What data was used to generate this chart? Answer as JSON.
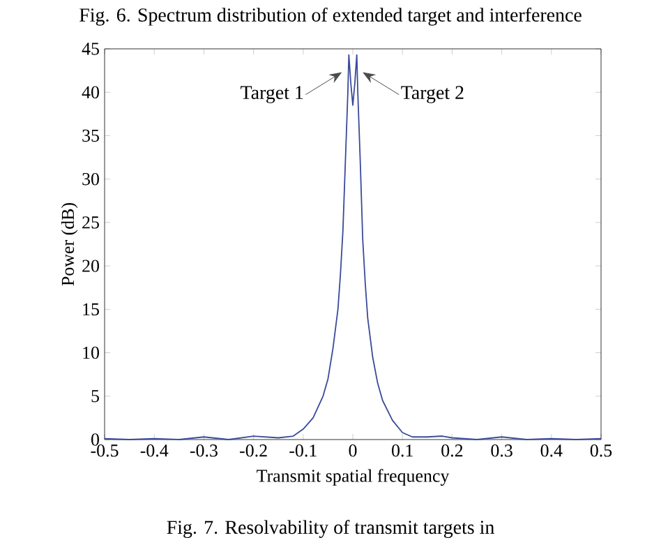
{
  "chart_data": {
    "type": "line",
    "title": "Fig. 6.  Spectrum distribution of extended target and interference",
    "xlabel": "Transmit spatial frequency",
    "ylabel": "Power (dB)",
    "annotations": [
      {
        "text": "Target 1",
        "x": -0.022,
        "y": 42.3
      },
      {
        "text": "Target 2",
        "x": 0.02,
        "y": 42.3
      },
      "Fig. 7.  Resolvability of transmit targets in"
    ],
    "x": [
      -0.5,
      -0.45,
      -0.4,
      -0.35,
      -0.3,
      -0.25,
      -0.2,
      -0.15,
      -0.12,
      -0.1,
      -0.08,
      -0.06,
      -0.05,
      -0.04,
      -0.03,
      -0.025,
      -0.02,
      -0.015,
      -0.01,
      -0.008,
      -0.004,
      0,
      0.004,
      0.008,
      0.01,
      0.015,
      0.02,
      0.025,
      0.03,
      0.04,
      0.05,
      0.06,
      0.08,
      0.1,
      0.12,
      0.15,
      0.18,
      0.2,
      0.25,
      0.3,
      0.35,
      0.4,
      0.45,
      0.5
    ],
    "series": [
      {
        "color": "#3a4a9a",
        "values": [
          0.1,
          0,
          0.1,
          0,
          0.3,
          0,
          0.4,
          0.2,
          0.4,
          1.2,
          2.5,
          5,
          7,
          10.5,
          15,
          19,
          24,
          32,
          40,
          44.3,
          41,
          38.5,
          41,
          44.3,
          40,
          32,
          23,
          18,
          14,
          9.5,
          6.5,
          4.5,
          2.2,
          0.8,
          0.3,
          0.3,
          0.4,
          0.2,
          0,
          0.3,
          0,
          0.1,
          0,
          0.1
        ]
      }
    ],
    "xlim": [
      -0.5,
      0.5
    ],
    "ylim": [
      0,
      45
    ],
    "xticks": [
      -0.5,
      -0.4,
      -0.3,
      -0.2,
      -0.1,
      0,
      0.1,
      0.2,
      0.3,
      0.4,
      0.5
    ],
    "yticks": [
      0,
      5,
      10,
      15,
      20,
      25,
      30,
      35,
      40,
      45
    ],
    "grid": false,
    "marker": "none",
    "line_style": "solid"
  }
}
